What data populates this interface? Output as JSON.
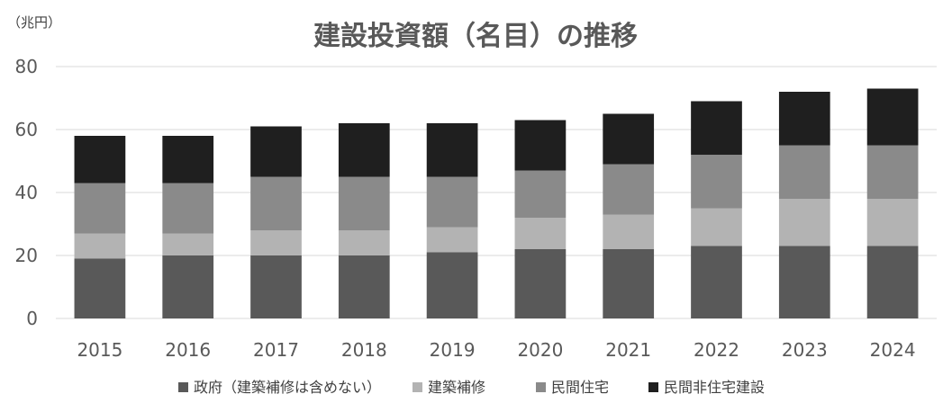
{
  "chart_data": {
    "type": "bar",
    "stacked": true,
    "title": "建設投資額（名目）の推移",
    "unit_label": "（兆円）",
    "categories": [
      "2015",
      "2016",
      "2017",
      "2018",
      "2019",
      "2020",
      "2021",
      "2022",
      "2023",
      "2024"
    ],
    "series": [
      {
        "name": "政府（建築補修は含めない）",
        "color": "#595959",
        "values": [
          19,
          20,
          20,
          20,
          21,
          22,
          22,
          23,
          23,
          23
        ]
      },
      {
        "name": "建築補修",
        "color": "#b3b3b3",
        "values": [
          8,
          7,
          8,
          8,
          8,
          10,
          11,
          12,
          15,
          15
        ]
      },
      {
        "name": "民間住宅",
        "color": "#8a8a8a",
        "values": [
          16,
          16,
          17,
          17,
          16,
          15,
          16,
          17,
          17,
          17
        ]
      },
      {
        "name": "民間非住宅建設",
        "color": "#1f1f1f",
        "values": [
          15,
          15,
          16,
          17,
          17,
          16,
          16,
          17,
          17,
          18
        ]
      }
    ],
    "ylim": [
      0,
      80
    ],
    "yticks": [
      "0",
      "20",
      "40",
      "60",
      "80"
    ],
    "grid": true,
    "legend_position": "bottom"
  }
}
